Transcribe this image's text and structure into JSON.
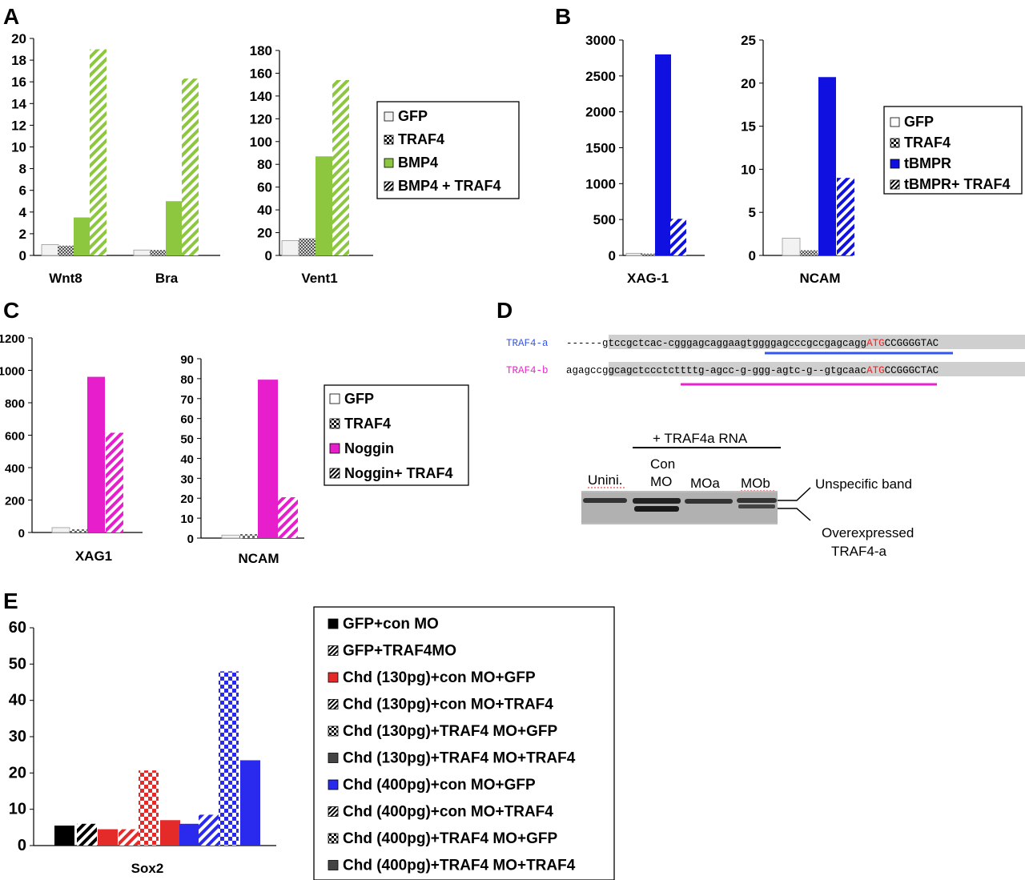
{
  "panel_labels": {
    "A": "A",
    "B": "B",
    "C": "C",
    "D": "D",
    "E": "E"
  },
  "colors": {
    "gfp": "#f2f2f2",
    "traf4": "#999999",
    "bmp4": "#8dc63f",
    "tbmpr": "#1010e0",
    "noggin": "#e61ecc",
    "chd_red": "#e52a2a",
    "chd_blue": "#2a2aee",
    "seq_blue": "#3355ee",
    "seq_magenta": "#ee22cc",
    "atg_red": "#ee2222"
  },
  "chart_data": [
    {
      "id": "A1",
      "type": "bar",
      "categories": [
        "Wnt8",
        "Bra"
      ],
      "ylim": [
        0,
        20
      ],
      "yticks": [
        0,
        2,
        4,
        6,
        8,
        10,
        12,
        14,
        16,
        18,
        20
      ],
      "series": [
        {
          "name": "GFP",
          "values": [
            1.0,
            0.5
          ]
        },
        {
          "name": "TRAF4",
          "values": [
            0.9,
            0.5
          ]
        },
        {
          "name": "BMP4",
          "values": [
            3.5,
            5.0
          ]
        },
        {
          "name": "BMP4 + TRAF4",
          "values": [
            19.0,
            16.3
          ]
        }
      ]
    },
    {
      "id": "A2",
      "type": "bar",
      "categories": [
        "Vent1"
      ],
      "ylim": [
        0,
        180
      ],
      "yticks": [
        0,
        20,
        40,
        60,
        80,
        100,
        120,
        140,
        160,
        180
      ],
      "series": [
        {
          "name": "GFP",
          "values": [
            13
          ]
        },
        {
          "name": "TRAF4",
          "values": [
            15
          ]
        },
        {
          "name": "BMP4",
          "values": [
            87
          ]
        },
        {
          "name": "BMP4 + TRAF4",
          "values": [
            154
          ]
        }
      ]
    },
    {
      "id": "B1",
      "type": "bar",
      "categories": [
        "XAG-1"
      ],
      "ylim": [
        0,
        3000
      ],
      "yticks": [
        0,
        500,
        1000,
        1500,
        2000,
        2500,
        3000
      ],
      "series": [
        {
          "name": "GFP",
          "values": [
            30
          ]
        },
        {
          "name": "TRAF4",
          "values": [
            25
          ]
        },
        {
          "name": "tBMPR",
          "values": [
            2800
          ]
        },
        {
          "name": "tBMPR+ TRAF4",
          "values": [
            510
          ]
        }
      ]
    },
    {
      "id": "B2",
      "type": "bar",
      "categories": [
        "NCAM"
      ],
      "ylim": [
        0,
        25
      ],
      "yticks": [
        0,
        5,
        10,
        15,
        20,
        25
      ],
      "series": [
        {
          "name": "GFP",
          "values": [
            2.0
          ]
        },
        {
          "name": "TRAF4",
          "values": [
            0.6
          ]
        },
        {
          "name": "tBMPR",
          "values": [
            20.7
          ]
        },
        {
          "name": "tBMPR+ TRAF4",
          "values": [
            9.0
          ]
        }
      ]
    },
    {
      "id": "C1",
      "type": "bar",
      "categories": [
        "XAG1"
      ],
      "ylim": [
        0,
        1200
      ],
      "yticks": [
        0,
        200,
        400,
        600,
        800,
        1000,
        1200
      ],
      "series": [
        {
          "name": "GFP",
          "values": [
            30
          ]
        },
        {
          "name": "TRAF4",
          "values": [
            20
          ]
        },
        {
          "name": "Noggin",
          "values": [
            960
          ]
        },
        {
          "name": "Noggin+ TRAF4",
          "values": [
            615
          ]
        }
      ]
    },
    {
      "id": "C2",
      "type": "bar",
      "categories": [
        "NCAM"
      ],
      "ylim": [
        0,
        90
      ],
      "yticks": [
        0,
        10,
        20,
        30,
        40,
        50,
        60,
        70,
        80,
        90
      ],
      "series": [
        {
          "name": "GFP",
          "values": [
            1.5
          ]
        },
        {
          "name": "TRAF4",
          "values": [
            2
          ]
        },
        {
          "name": "Noggin",
          "values": [
            79.5
          ]
        },
        {
          "name": "Noggin+ TRAF4",
          "values": [
            20.5
          ]
        }
      ]
    },
    {
      "id": "E",
      "type": "bar",
      "categories": [
        "Sox2"
      ],
      "ylim": [
        0,
        60
      ],
      "yticks": [
        0,
        10,
        20,
        30,
        40,
        50,
        60
      ],
      "series": [
        {
          "name": "GFP+con MO",
          "values": [
            5.5
          ]
        },
        {
          "name": "GFP+TRAF4MO",
          "values": [
            6.0
          ]
        },
        {
          "name": "Chd (130pg)+con MO+GFP",
          "values": [
            4.5
          ]
        },
        {
          "name": "Chd (130pg)+con MO+TRAF4",
          "values": [
            4.5
          ]
        },
        {
          "name": "Chd (130pg)+TRAF4 MO+GFP",
          "values": [
            20.7
          ]
        },
        {
          "name": "Chd (130pg)+TRAF4 MO+TRAF4",
          "values": [
            7.0
          ]
        },
        {
          "name": "Chd (400pg)+con MO+GFP",
          "values": [
            6.0
          ]
        },
        {
          "name": "Chd (400pg)+con MO+TRAF4",
          "values": [
            8.5
          ]
        },
        {
          "name": "Chd (400pg)+TRAF4 MO+GFP",
          "values": [
            48.0
          ]
        },
        {
          "name": "Chd (400pg)+TRAF4 MO+TRAF4",
          "values": [
            23.5
          ]
        }
      ]
    }
  ],
  "panel_d": {
    "traf4a_label": "TRAF4-a",
    "traf4a_seq": "------gtccgctcac-cgggagcaggaagtggggagcccgccgagcagg",
    "traf4a_atg": "ATG",
    "traf4a_tail": "CCGGGGTAC",
    "traf4b_label": "TRAF4-b",
    "traf4b_seq": "agagccggcagctccctcttttg-agcc-g-ggg-agtc-g--gtgcaac",
    "traf4b_atg": "ATG",
    "traf4b_tail": "CCGGGCTAC",
    "rna_label": "+ TRAF4a RNA",
    "lanes": [
      "Unini.",
      "Con\nMO",
      "MOa",
      "MOb"
    ],
    "unspecific": "Unspecific band",
    "overexpressed_1": "Overexpressed",
    "overexpressed_2": "TRAF4-a"
  }
}
